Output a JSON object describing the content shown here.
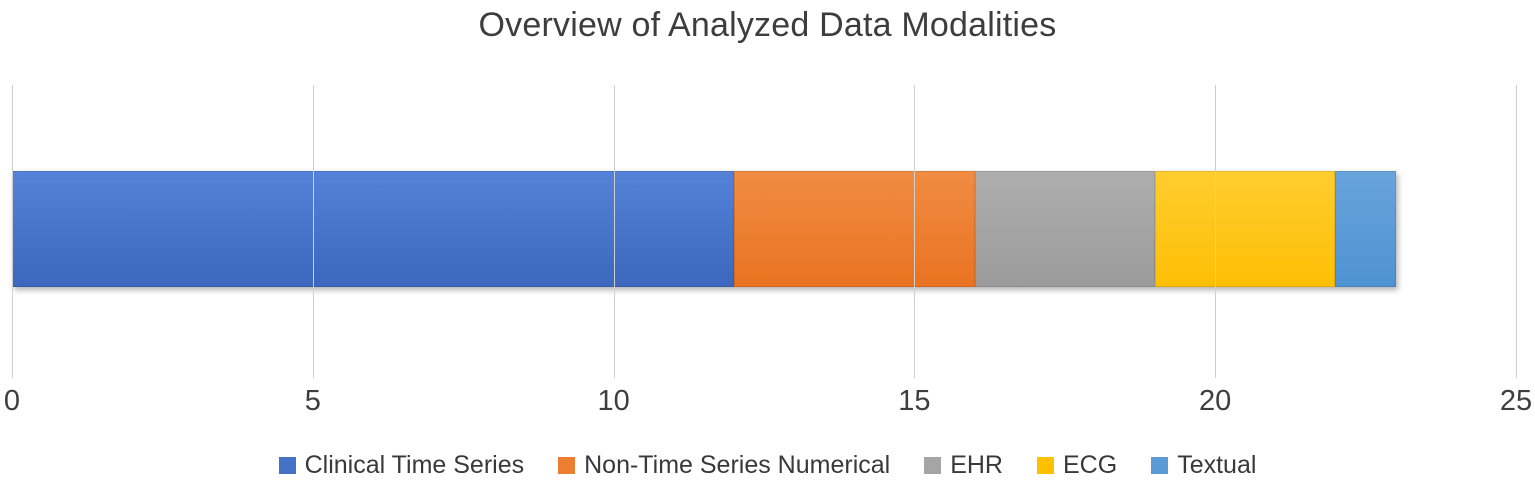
{
  "title": "Overview of Analyzed Data Modalities",
  "chart_data": {
    "type": "bar",
    "orientation": "horizontal-stacked",
    "title": "Overview of Analyzed Data Modalities",
    "categories": [
      "Analyzed Data Modalities"
    ],
    "series": [
      {
        "name": "Clinical Time Series",
        "values": [
          12
        ],
        "color": "#4472C4",
        "gradient": [
          "#5482d8",
          "#3b67be"
        ]
      },
      {
        "name": "Non-Time Series Numerical",
        "values": [
          4
        ],
        "color": "#ED7D31",
        "gradient": [
          "#f08c42",
          "#ea7321"
        ]
      },
      {
        "name": "EHR",
        "values": [
          3
        ],
        "color": "#A5A5A5",
        "gradient": [
          "#aeaeae",
          "#9b9b9b"
        ]
      },
      {
        "name": "ECG",
        "values": [
          3
        ],
        "color": "#FFC000",
        "gradient": [
          "#ffcd2f",
          "#febf05"
        ]
      },
      {
        "name": "Textual",
        "values": [
          1
        ],
        "color": "#5B9BD5",
        "gradient": [
          "#69a4dc",
          "#4e92d2"
        ]
      }
    ],
    "total": 23,
    "xlabel": "",
    "ylabel": "",
    "xlim": [
      0,
      25
    ],
    "xticks": [
      0,
      5,
      10,
      15,
      20,
      25
    ],
    "grid": true,
    "gridline_color": "#cfcfcf",
    "background_color": "#ffffff",
    "text_color": "#3d3d3d",
    "legend_position": "bottom-center"
  }
}
